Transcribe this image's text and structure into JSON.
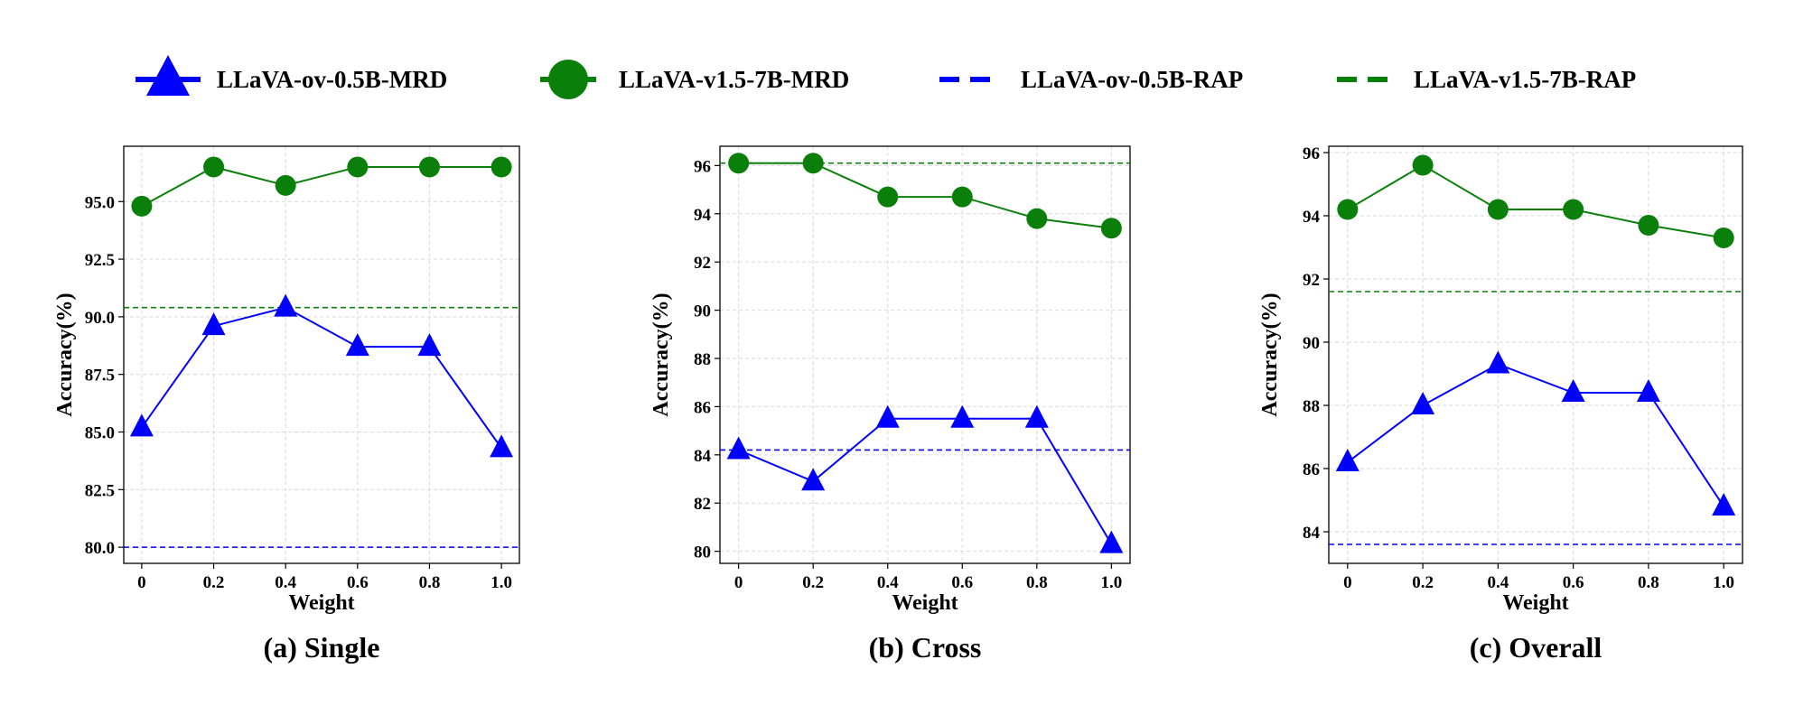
{
  "legend": [
    {
      "label": "LLaVA-ov-0.5B-MRD",
      "color": "#0000ff",
      "style": "line-triangle"
    },
    {
      "label": "LLaVA-v1.5-7B-MRD",
      "color": "#0a800a",
      "style": "line-circle"
    },
    {
      "label": "LLaVA-ov-0.5B-RAP",
      "color": "#0000ff",
      "style": "dashed"
    },
    {
      "label": "LLaVA-v1.5-7B-RAP",
      "color": "#0a800a",
      "style": "dashed"
    }
  ],
  "chart_data": [
    {
      "type": "line",
      "caption": "(a) Single",
      "xlabel": "Weight",
      "ylabel": "Accuracy(%)",
      "x": [
        0,
        0.2,
        0.4,
        0.6,
        0.8,
        1.0
      ],
      "xticks": [
        "0",
        "0.2",
        "0.4",
        "0.6",
        "0.8",
        "1.0"
      ],
      "ylim": [
        79.3,
        97.4
      ],
      "yticks": [
        "80.0",
        "82.5",
        "85.0",
        "87.5",
        "90.0",
        "92.5",
        "95.0"
      ],
      "ytick_values": [
        80,
        82.5,
        85,
        87.5,
        90,
        92.5,
        95
      ],
      "series": [
        {
          "name": "LLaVA-ov-0.5B-MRD",
          "values": [
            85.2,
            89.6,
            90.4,
            88.7,
            88.7,
            84.3
          ]
        },
        {
          "name": "LLaVA-v1.5-7B-MRD",
          "values": [
            94.8,
            96.5,
            95.7,
            96.5,
            96.5,
            96.5
          ]
        }
      ],
      "reference_lines": [
        {
          "name": "LLaVA-ov-0.5B-RAP",
          "value": 80.0
        },
        {
          "name": "LLaVA-v1.5-7B-RAP",
          "value": 90.4
        }
      ]
    },
    {
      "type": "line",
      "caption": "(b) Cross",
      "xlabel": "Weight",
      "ylabel": "Accuracy(%)",
      "x": [
        0,
        0.2,
        0.4,
        0.6,
        0.8,
        1.0
      ],
      "xticks": [
        "0",
        "0.2",
        "0.4",
        "0.6",
        "0.8",
        "1.0"
      ],
      "ylim": [
        79.5,
        96.8
      ],
      "yticks": [
        "80",
        "82",
        "84",
        "86",
        "88",
        "90",
        "92",
        "94",
        "96"
      ],
      "ytick_values": [
        80,
        82,
        84,
        86,
        88,
        90,
        92,
        94,
        96
      ],
      "series": [
        {
          "name": "LLaVA-ov-0.5B-MRD",
          "values": [
            84.2,
            82.9,
            85.5,
            85.5,
            85.5,
            80.3
          ]
        },
        {
          "name": "LLaVA-v1.5-7B-MRD",
          "values": [
            96.1,
            96.1,
            94.7,
            94.7,
            93.8,
            93.4
          ]
        }
      ],
      "reference_lines": [
        {
          "name": "LLaVA-ov-0.5B-RAP",
          "value": 84.2
        },
        {
          "name": "LLaVA-v1.5-7B-RAP",
          "value": 96.1
        }
      ]
    },
    {
      "type": "line",
      "caption": "(c) Overall",
      "xlabel": "Weight",
      "ylabel": "Accuracy(%)",
      "x": [
        0,
        0.2,
        0.4,
        0.6,
        0.8,
        1.0
      ],
      "xticks": [
        "0",
        "0.2",
        "0.4",
        "0.6",
        "0.8",
        "1.0"
      ],
      "ylim": [
        83.0,
        96.2
      ],
      "yticks": [
        "84",
        "86",
        "88",
        "90",
        "92",
        "94",
        "96"
      ],
      "ytick_values": [
        84,
        86,
        88,
        90,
        92,
        94,
        96
      ],
      "series": [
        {
          "name": "LLaVA-ov-0.5B-MRD",
          "values": [
            86.2,
            88.0,
            89.3,
            88.4,
            88.4,
            84.8
          ]
        },
        {
          "name": "LLaVA-v1.5-7B-MRD",
          "values": [
            94.2,
            95.6,
            94.2,
            94.2,
            93.7,
            93.3
          ]
        }
      ],
      "reference_lines": [
        {
          "name": "LLaVA-ov-0.5B-RAP",
          "value": 83.6
        },
        {
          "name": "LLaVA-v1.5-7B-RAP",
          "value": 91.6
        }
      ]
    }
  ]
}
